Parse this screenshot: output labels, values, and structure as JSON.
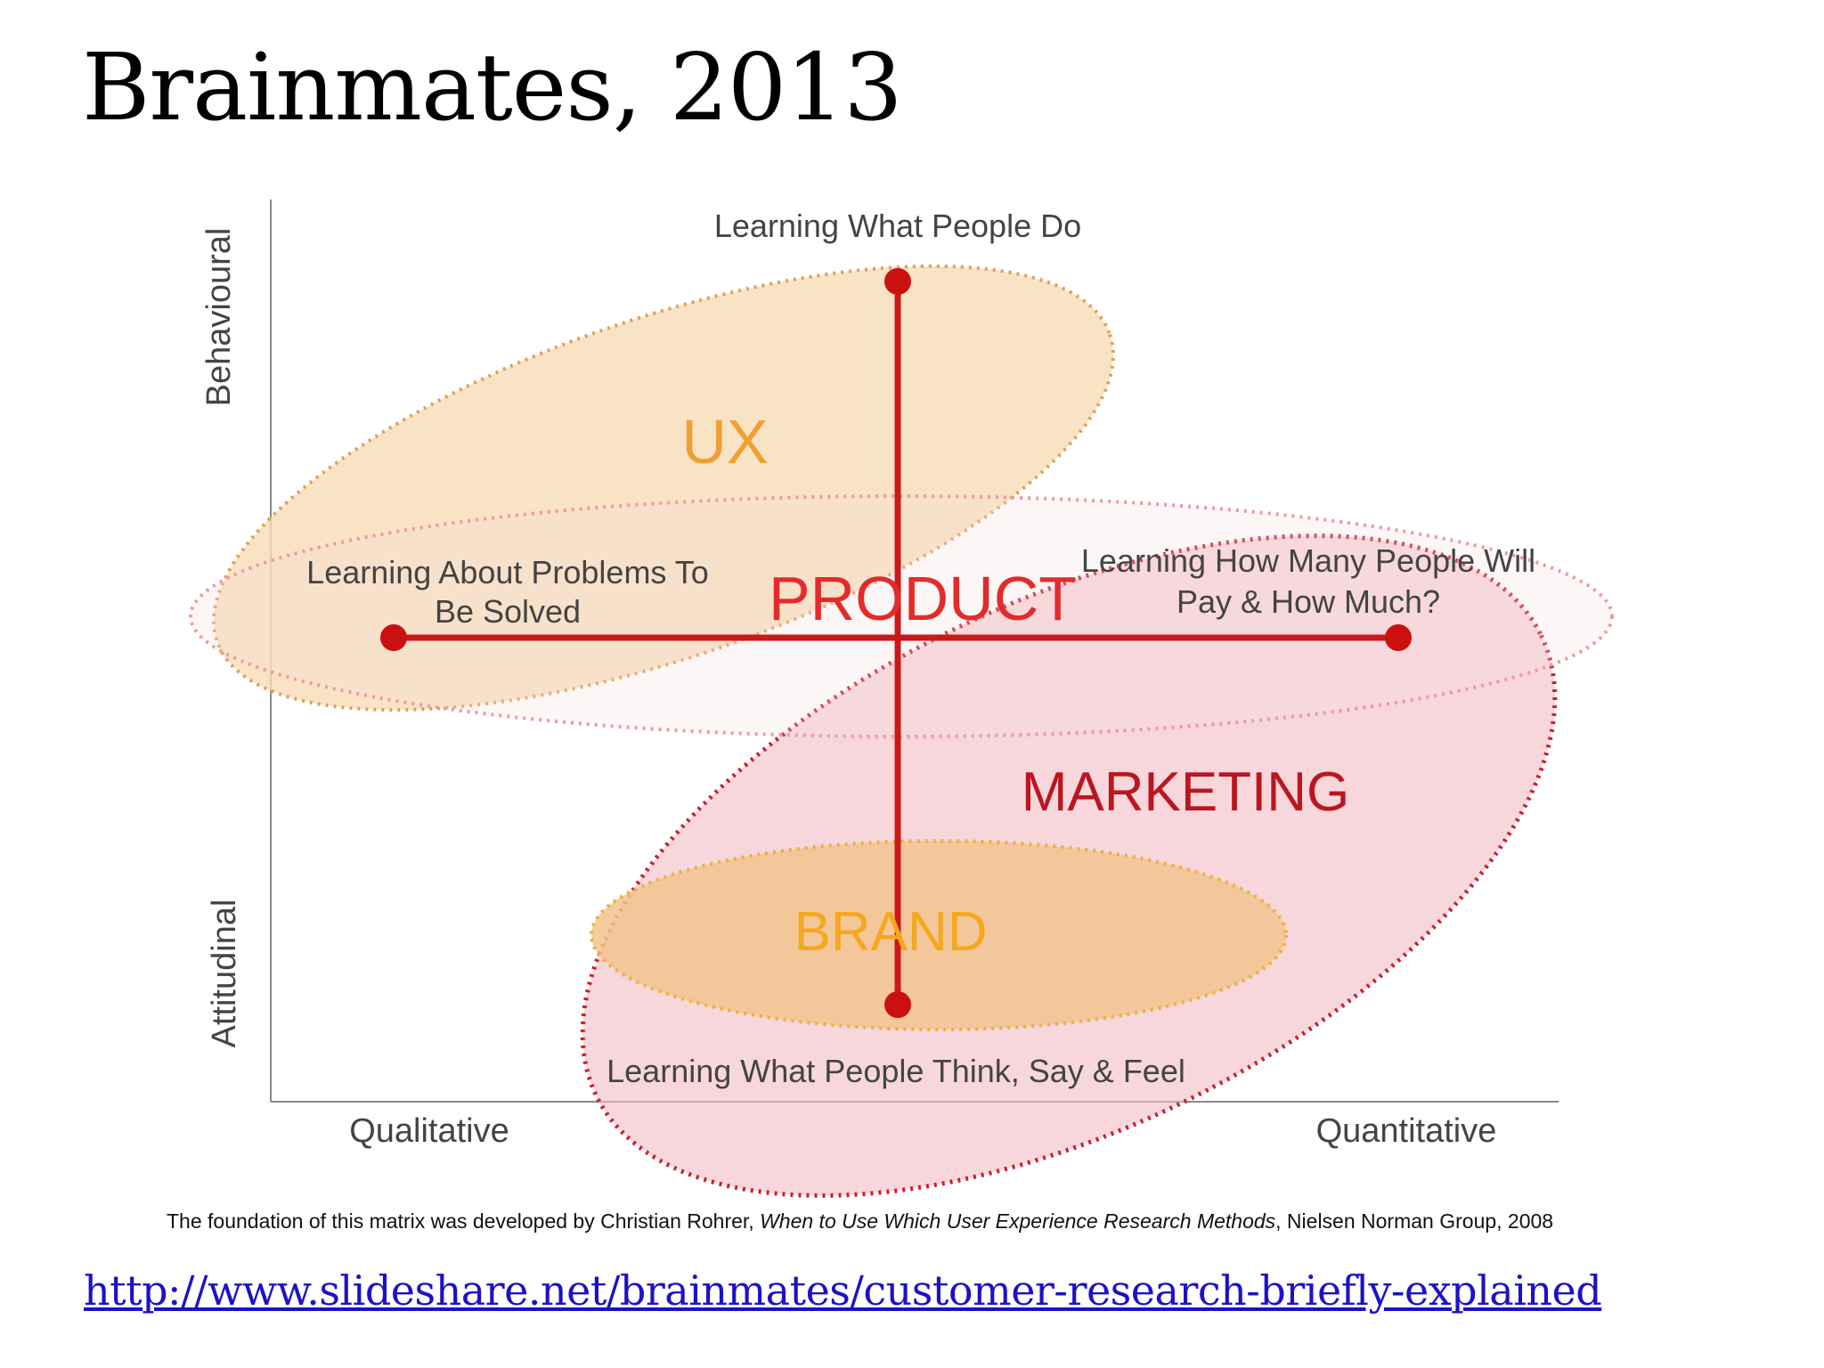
{
  "slide": {
    "title": "Brainmates, 2013"
  },
  "diagram": {
    "y_axis": {
      "top_label": "Behavioural",
      "bottom_label": "Attitudinal"
    },
    "x_axis": {
      "left_label": "Qualitative",
      "right_label": "Quantitative"
    },
    "endpoint_labels": {
      "top": "Learning What People Do",
      "left_line1": "Learning About Problems To",
      "left_line2": "Be Solved",
      "right_line1": "Learning How Many People Will",
      "right_line2": "Pay & How Much?",
      "bottom": "Learning What People Think, Say & Feel"
    },
    "regions": {
      "ux": "UX",
      "product": "PRODUCT",
      "marketing": "MARKETING",
      "brand": "BRAND"
    },
    "colors": {
      "axis_line": "#cc1818",
      "ux_fill": "#f7dcb6",
      "ux_stroke": "#e0a05a",
      "ux_text": "#f0a030",
      "product_stroke": "#ec9aa2",
      "product_text": "#e32b2b",
      "marketing_fill": "#f2bcc4",
      "marketing_stroke": "#cc1f2f",
      "marketing_text": "#bb1620",
      "brand_fill": "#f2c48e",
      "brand_stroke": "#eab23a",
      "brand_text": "#f4a81e"
    },
    "footnote": {
      "prefix": "The foundation of this matrix was developed by Christian Rohrer, ",
      "italic": "When to Use Which User Experience Research Methods",
      "suffix": ", Nielsen Norman Group, 2008"
    }
  },
  "source_link": {
    "text": "http://www.slideshare.net/brainmates/customer-research-briefly-explained"
  }
}
